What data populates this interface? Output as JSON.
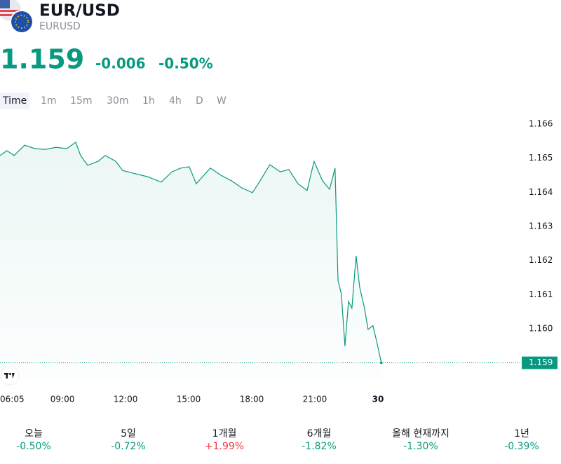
{
  "header": {
    "symbol": "EUR/USD",
    "ticker": "EURUSD",
    "price": "1.159",
    "change": "-0.006",
    "change_pct": "-0.50%"
  },
  "intervals": [
    "Time",
    "1m",
    "15m",
    "30m",
    "1h",
    "4h",
    "D",
    "W"
  ],
  "chart_data": {
    "type": "line",
    "x": [
      6.03,
      6.36,
      6.7,
      7.2,
      7.7,
      8.2,
      8.7,
      9.2,
      9.63,
      9.86,
      10.2,
      10.7,
      11.03,
      11.53,
      11.86,
      12.36,
      13.03,
      13.7,
      14.2,
      14.63,
      15.03,
      15.36,
      16.03,
      16.53,
      17.03,
      17.53,
      18.03,
      18.36,
      18.86,
      19.36,
      19.76,
      20.2,
      20.63,
      20.96,
      21.36,
      21.7,
      21.96,
      22.0,
      22.1,
      22.26,
      22.43,
      22.6,
      22.76,
      22.96,
      23.13,
      23.36,
      23.53,
      23.76,
      23.96,
      24.16
    ],
    "series": [
      {
        "name": "EURUSD",
        "color": "#089981",
        "values": [
          1.16508,
          1.16522,
          1.16508,
          1.16538,
          1.16528,
          1.16526,
          1.16532,
          1.16528,
          1.16547,
          1.16508,
          1.16479,
          1.16491,
          1.16508,
          1.16491,
          1.16464,
          1.16456,
          1.16446,
          1.1643,
          1.1646,
          1.16471,
          1.16475,
          1.16425,
          1.16471,
          1.1645,
          1.16434,
          1.16413,
          1.16399,
          1.1643,
          1.16481,
          1.1646,
          1.16467,
          1.16425,
          1.16405,
          1.16491,
          1.16434,
          1.16409,
          1.16471,
          1.16378,
          1.16142,
          1.16101,
          1.15949,
          1.1608,
          1.1606,
          1.16214,
          1.16122,
          1.1606,
          1.15998,
          1.16009,
          1.15957,
          1.159
        ]
      }
    ],
    "xlim": [
      6.03,
      30.87
    ],
    "xticks": [
      {
        "value": 6.083,
        "label": "06:05"
      },
      {
        "value": 9,
        "label": "09:00"
      },
      {
        "value": 12,
        "label": "12:00"
      },
      {
        "value": 15,
        "label": "15:00"
      },
      {
        "value": 18,
        "label": "18:00"
      },
      {
        "value": 21,
        "label": "21:00"
      },
      {
        "value": 24,
        "label": "30"
      }
    ],
    "ylim": [
      1.1585,
      1.1667
    ],
    "yticks": [
      {
        "value": 1.16,
        "label": "1.160"
      },
      1.161,
      1.162,
      1.163,
      1.164,
      1.165,
      1.166
    ]
  },
  "performance": [
    {
      "label": "오늘",
      "value": "-0.50%",
      "color": "#089981"
    },
    {
      "label": "5일",
      "value": "-0.72%",
      "color": "#089981"
    },
    {
      "label": "1개월",
      "value": "+1.99%",
      "color": "#f23645"
    },
    {
      "label": "6개월",
      "value": "-1.82%",
      "color": "#089981"
    },
    {
      "label": "올해 현재까지",
      "value": "-1.30%",
      "color": "#089981"
    },
    {
      "label": "1년",
      "value": "-0.39%",
      "color": "#089981"
    }
  ]
}
